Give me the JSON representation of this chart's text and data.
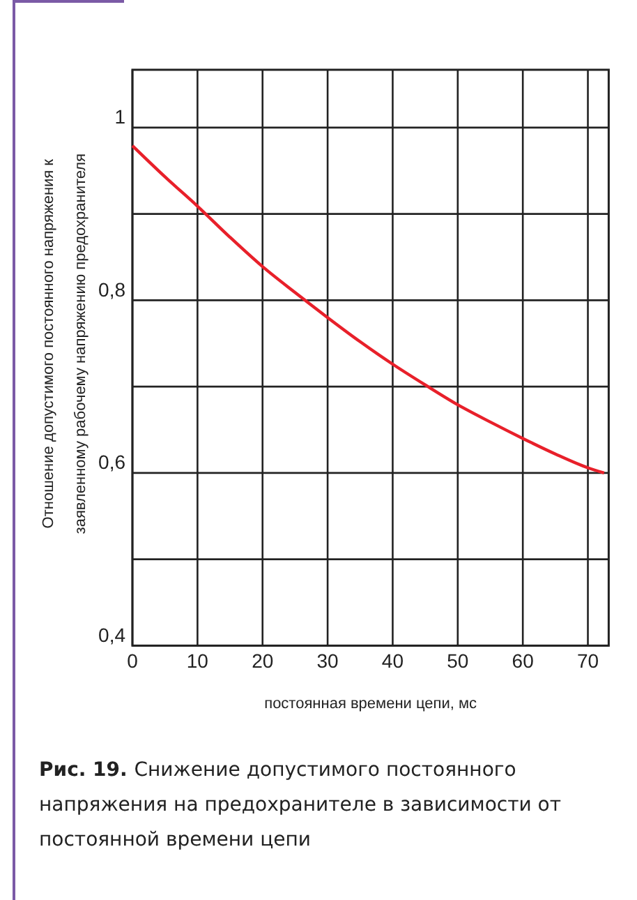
{
  "chart_data": {
    "type": "line",
    "xlabel": "постоянная времени цепи, мс",
    "ylabel": "Отношение допустимого постоянного напряжения к\nзаявленному рабочему напряжению предохранителя",
    "annotations": [
      "Рис. 19.",
      "Снижение допустимого постоянного напряжения на предохранителе в зависимости от постоянной времени цепи"
    ],
    "x": [
      0,
      5,
      10,
      15,
      20,
      25,
      30,
      35,
      40,
      45,
      50,
      55,
      60,
      65,
      70,
      72.5
    ],
    "series": [
      {
        "color": "#e8202a",
        "values": [
          0.979,
          0.943,
          0.909,
          0.873,
          0.839,
          0.809,
          0.78,
          0.752,
          0.726,
          0.702,
          0.679,
          0.659,
          0.64,
          0.622,
          0.606,
          0.6
        ]
      }
    ],
    "xlim": [
      0,
      73.2
    ],
    "ylim": [
      0.4,
      1.067
    ],
    "xticks": [
      0,
      10,
      20,
      30,
      40,
      50,
      60,
      70
    ],
    "yticks": [
      {
        "value": 0.4,
        "label": "0,4"
      },
      {
        "value": 0.5,
        "label": null
      },
      {
        "value": 0.6,
        "label": "0,6"
      },
      {
        "value": 0.7,
        "label": null
      },
      {
        "value": 0.8,
        "label": "0,8"
      },
      {
        "value": 0.9,
        "label": null
      },
      1
    ],
    "grid": true,
    "marker": "none",
    "line_style": "solid"
  }
}
